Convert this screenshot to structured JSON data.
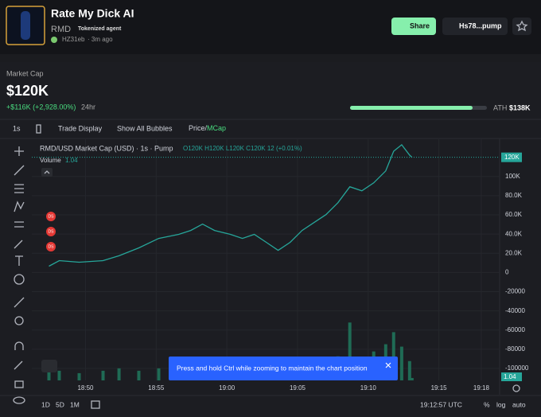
{
  "header": {
    "title": "Rate My Dick AI",
    "ticker": "RMD",
    "badge": "Tokenized agent",
    "creator": "HZ31eb",
    "age": "· 3m ago",
    "share": "Share",
    "address": "Hs78...pump"
  },
  "stats": {
    "label": "Market Cap",
    "value": "$120K",
    "change": "+$116K (+2,928.00%)",
    "period": "24hr",
    "ath_label": "ATH",
    "ath_value": "$138K"
  },
  "toolbar": {
    "interval": "1s",
    "trade_display": "Trade Display",
    "bubbles": "Show All Bubbles",
    "price": "Price/",
    "mcap": "MCap"
  },
  "markers": [
    "DS",
    "DS",
    "DS"
  ],
  "toast": "Press and hold Ctrl while zooming to maintain the chart position",
  "bottom": {
    "ranges": [
      "1D",
      "5D",
      "1M"
    ],
    "clock": "19:12:57 UTC",
    "options": [
      "%",
      "log",
      "auto"
    ]
  },
  "chart_data": {
    "type": "line",
    "title": "RMD/USD Market Cap (USD) · 1s · Pump",
    "ohlc": "O120K H120K L120K C120K 12 (+0.01%)",
    "volume_label": "Volume",
    "volume_last": "1.04",
    "x": [
      47.41,
      48.14,
      49.55,
      51.24,
      52.37,
      53.77,
      55.18,
      56.59,
      57.44,
      58.28,
      59.13,
      60.25,
      61.1,
      61.94,
      62.79,
      63.63,
      64.48,
      65.32,
      66.17,
      67.01,
      67.86,
      68.7,
      69.55,
      70.39,
      71.24,
      71.8,
      72.37,
      72.93,
      73.1
    ],
    "series": [
      {
        "name": "MCap",
        "color": "#26a69a",
        "values": [
          6600,
          12400,
          10700,
          12400,
          17400,
          25600,
          35500,
          39700,
          43800,
          50400,
          43800,
          39700,
          35500,
          39700,
          31400,
          23100,
          31400,
          43800,
          52100,
          60300,
          72700,
          89300,
          85100,
          93400,
          105800,
          126400,
          133100,
          122300,
          120000
        ]
      },
      {
        "name": "Volume",
        "color": "#1f6b55",
        "axis": "y2",
        "values": [
          6,
          4,
          3,
          4,
          5,
          4,
          5,
          4,
          6,
          7,
          5,
          4,
          4,
          5,
          5,
          4,
          5,
          6,
          7,
          8,
          10,
          24,
          9,
          12,
          15,
          20,
          14,
          8,
          1
        ]
      }
    ],
    "last_price": {
      "value": 120000,
      "label": "120K"
    },
    "xlim": [
      46.2,
      79.3
    ],
    "xticks": [
      {
        "value": 50,
        "label": "18:50"
      },
      {
        "value": 55,
        "label": "18:55"
      },
      {
        "value": 60,
        "label": "19:00"
      },
      {
        "value": 65,
        "label": "19:05"
      },
      {
        "value": 70,
        "label": "19:10"
      },
      {
        "value": 75,
        "label": "19:15"
      },
      {
        "value": 78,
        "label": "19:18"
      }
    ],
    "ylim": [
      -112400,
      138800
    ],
    "yticks": [
      {
        "value": 100000,
        "label": "100K"
      },
      {
        "value": 80000,
        "label": "80.0K"
      },
      {
        "value": 60000,
        "label": "60.0K"
      },
      {
        "value": 40000,
        "label": "40.0K"
      },
      {
        "value": 20000,
        "label": "20.0K"
      },
      0,
      -20000,
      -40000,
      -60000,
      -80000,
      -100000
    ],
    "y2lim": [
      0,
      100
    ],
    "grid": true
  }
}
